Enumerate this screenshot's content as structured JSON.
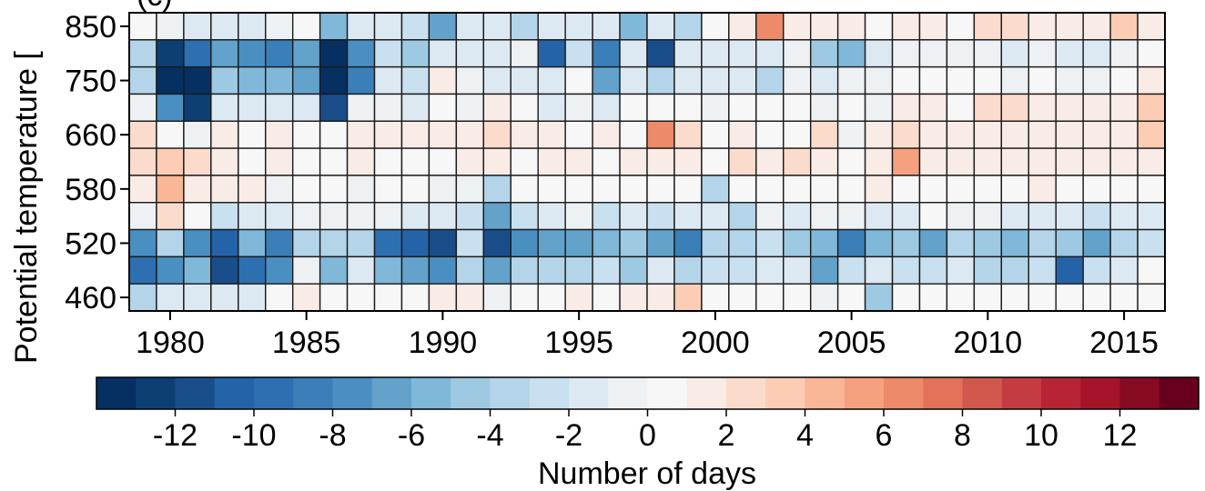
{
  "panel_label": "(c)",
  "chart_data": {
    "type": "heatmap",
    "title": "",
    "xlabel": "",
    "ylabel": "Potential temperature [",
    "x_years": [
      1979,
      1980,
      1981,
      1982,
      1983,
      1984,
      1985,
      1986,
      1987,
      1988,
      1989,
      1990,
      1991,
      1992,
      1993,
      1994,
      1995,
      1996,
      1997,
      1998,
      1999,
      2000,
      2001,
      2002,
      2003,
      2004,
      2005,
      2006,
      2007,
      2008,
      2009,
      2010,
      2011,
      2012,
      2013,
      2014,
      2015,
      2016
    ],
    "x_tick_labels": [
      "1980",
      "1985",
      "1990",
      "1995",
      "2000",
      "2005",
      "2010",
      "2015"
    ],
    "x_tick_years": [
      1980,
      1985,
      1990,
      1995,
      2000,
      2005,
      2010,
      2015
    ],
    "y_levels": [
      850,
      800,
      750,
      700,
      660,
      620,
      580,
      550,
      520,
      490,
      460
    ],
    "y_tick_labels": [
      "850",
      "750",
      "660",
      "580",
      "520",
      "460"
    ],
    "y_tick_levels": [
      850,
      750,
      660,
      580,
      520,
      460
    ],
    "values": [
      [
        0,
        -1,
        -2,
        -2,
        -2,
        -1,
        0,
        -6,
        -2,
        -2,
        -3,
        -7,
        -2,
        -2,
        -4,
        -2,
        -2,
        -2,
        -6,
        -2,
        -4,
        0,
        1,
        6,
        1,
        1,
        1,
        0,
        1,
        1,
        0,
        2,
        2,
        1,
        1,
        1,
        3,
        1
      ],
      [
        -4,
        -13,
        -10,
        -7,
        -8,
        -9,
        -7,
        -14,
        -8,
        -3,
        -5,
        -2,
        -2,
        -2,
        -1,
        -11,
        -3,
        -9,
        -2,
        -12,
        -2,
        -2,
        -2,
        -2,
        -1,
        -5,
        -6,
        -2,
        -1,
        -1,
        -1,
        -1,
        -2,
        -1,
        -2,
        -2,
        -1,
        0
      ],
      [
        -4,
        -14,
        -14,
        -5,
        -6,
        -6,
        -7,
        -14,
        -9,
        -2,
        -3,
        1,
        -1,
        -2,
        -2,
        -2,
        0,
        -7,
        -2,
        -4,
        -2,
        -2,
        -2,
        -4,
        -1,
        -2,
        -1,
        -1,
        0,
        0,
        0,
        0,
        -1,
        0,
        -1,
        -1,
        0,
        1
      ],
      [
        -1,
        -8,
        -13,
        -2,
        -2,
        -2,
        -2,
        -12,
        -1,
        -1,
        -2,
        0,
        -1,
        1,
        0,
        -2,
        -1,
        -2,
        0,
        0,
        0,
        -1,
        0,
        0,
        0,
        -1,
        0,
        -1,
        1,
        1,
        0,
        2,
        2,
        1,
        1,
        1,
        1,
        3
      ],
      [
        2,
        0,
        -1,
        1,
        0,
        1,
        0,
        0,
        1,
        1,
        1,
        1,
        1,
        2,
        1,
        1,
        0,
        1,
        0,
        6,
        2,
        0,
        1,
        0,
        0,
        2,
        -1,
        1,
        2,
        1,
        1,
        1,
        1,
        1,
        1,
        1,
        1,
        3
      ],
      [
        2,
        3,
        2,
        1,
        0,
        1,
        0,
        0,
        1,
        0,
        0,
        0,
        1,
        1,
        0,
        1,
        1,
        0,
        1,
        1,
        1,
        0,
        2,
        1,
        2,
        1,
        0,
        1,
        5,
        1,
        1,
        1,
        1,
        1,
        1,
        1,
        1,
        1
      ],
      [
        1,
        4,
        1,
        1,
        1,
        -1,
        0,
        0,
        -1,
        0,
        0,
        -1,
        -1,
        -4,
        0,
        0,
        0,
        0,
        0,
        0,
        0,
        -4,
        0,
        0,
        0,
        0,
        0,
        1,
        0,
        0,
        0,
        0,
        0,
        1,
        0,
        0,
        0,
        0
      ],
      [
        -1,
        2,
        0,
        -3,
        -2,
        -2,
        -1,
        -1,
        -1,
        -1,
        -2,
        -2,
        -3,
        -7,
        -3,
        -2,
        -1,
        -3,
        -2,
        -3,
        -2,
        -2,
        -4,
        -1,
        -2,
        -1,
        -1,
        -2,
        -2,
        0,
        -1,
        -1,
        -2,
        -2,
        -2,
        -3,
        -2,
        -2
      ],
      [
        -8,
        -4,
        -8,
        -11,
        -6,
        -9,
        -4,
        -4,
        -4,
        -10,
        -11,
        -12,
        -3,
        -12,
        -8,
        -7,
        -7,
        -6,
        -5,
        -7,
        -9,
        -4,
        -4,
        -3,
        -5,
        -6,
        -9,
        -6,
        -5,
        -7,
        -4,
        -5,
        -6,
        -4,
        -5,
        -7,
        -4,
        -3
      ],
      [
        -10,
        -8,
        -6,
        -12,
        -10,
        -8,
        -1,
        -6,
        -2,
        -6,
        -7,
        -8,
        -4,
        -7,
        -4,
        -4,
        -4,
        -3,
        -5,
        -2,
        -4,
        -3,
        -3,
        -2,
        -2,
        -7,
        -3,
        -2,
        -3,
        -3,
        -2,
        -4,
        -4,
        -3,
        -11,
        -3,
        -2,
        0
      ],
      [
        -4,
        -2,
        -2,
        -2,
        -2,
        0,
        1,
        0,
        0,
        0,
        0,
        1,
        1,
        -1,
        0,
        0,
        1,
        0,
        1,
        1,
        3,
        0,
        0,
        0,
        0,
        -1,
        0,
        -5,
        0,
        0,
        0,
        0,
        0,
        0,
        0,
        0,
        0,
        0
      ]
    ],
    "colorbar": {
      "label": "Number of days",
      "vmin": -14,
      "vmax": 14,
      "ticks": [
        -12,
        -10,
        -8,
        -6,
        -4,
        -2,
        0,
        2,
        4,
        6,
        8,
        10,
        12
      ],
      "tick_labels": [
        "-12",
        "-10",
        "-8",
        "-6",
        "-4",
        "-2",
        "0",
        "2",
        "4",
        "6",
        "8",
        "10",
        "12"
      ],
      "colors": [
        "#053061",
        "#0e3f74",
        "#1a4e8a",
        "#2463a7",
        "#2d70b1",
        "#3a7fb8",
        "#4a8fc1",
        "#62a2cb",
        "#7fb8d9",
        "#9ec9e2",
        "#b4d5e9",
        "#c8e0ef",
        "#dde9f2",
        "#edf1f4",
        "#f7f7f7",
        "#f9ebe5",
        "#fbdccc",
        "#fcccb4",
        "#f9b798",
        "#f5a17f",
        "#ec8a6a",
        "#e27259",
        "#d2574d",
        "#c43c42",
        "#b72434",
        "#a51428",
        "#870a23",
        "#67001f"
      ],
      "colormap": "RdBu_r"
    }
  }
}
